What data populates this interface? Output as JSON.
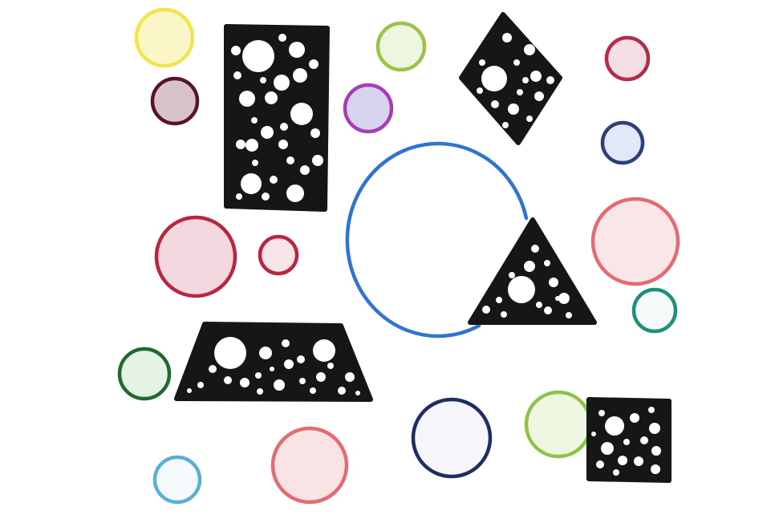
{
  "drawing": {
    "paper_color": "#ffffff",
    "fill_color": "#161616",
    "outlined_circles": [
      {
        "id": "yellow",
        "color": "#f2e44a",
        "fill": "#fbf6c8"
      },
      {
        "id": "maroon",
        "color": "#5a1328",
        "fill": "#d8c2cc"
      },
      {
        "id": "lime",
        "color": "#9bc24a",
        "fill": "#eef6df"
      },
      {
        "id": "purple",
        "color": "#a63fb6",
        "fill": "#d7d4f0"
      },
      {
        "id": "crimson",
        "color": "#b32c4a",
        "fill": "#f4dde4"
      },
      {
        "id": "navy",
        "color": "#2b3f7a",
        "fill": "#e3e8f6"
      },
      {
        "id": "big-crimson",
        "color": "#b8273f",
        "fill": "#f3d8df"
      },
      {
        "id": "small-crimson",
        "color": "#b8273f",
        "fill": "#f6e4e8"
      },
      {
        "id": "salmon",
        "color": "#e46b73",
        "fill": "#f9e6e8"
      },
      {
        "id": "teal",
        "color": "#1d8f7b",
        "fill": "#f4fbf8"
      },
      {
        "id": "green",
        "color": "#1f6a2f",
        "fill": "#e4f3e4"
      },
      {
        "id": "dark-blue",
        "color": "#1e2d63",
        "fill": "#f6f6fc"
      },
      {
        "id": "light-green",
        "color": "#8fc24a",
        "fill": "#eef7e2"
      },
      {
        "id": "light-blue",
        "color": "#5aaed8",
        "fill": "#f5fafd"
      },
      {
        "id": "coral",
        "color": "#e46b73",
        "fill": "#fae3e5"
      }
    ],
    "large_blue_circle": {
      "color": "#2f73d3"
    },
    "holed_shapes": [
      {
        "id": "tall-rectangle",
        "shape": "rectangle"
      },
      {
        "id": "diamond",
        "shape": "diamond"
      },
      {
        "id": "triangle",
        "shape": "triangle"
      },
      {
        "id": "trapezoid",
        "shape": "trapezoid"
      },
      {
        "id": "square",
        "shape": "square"
      }
    ]
  }
}
